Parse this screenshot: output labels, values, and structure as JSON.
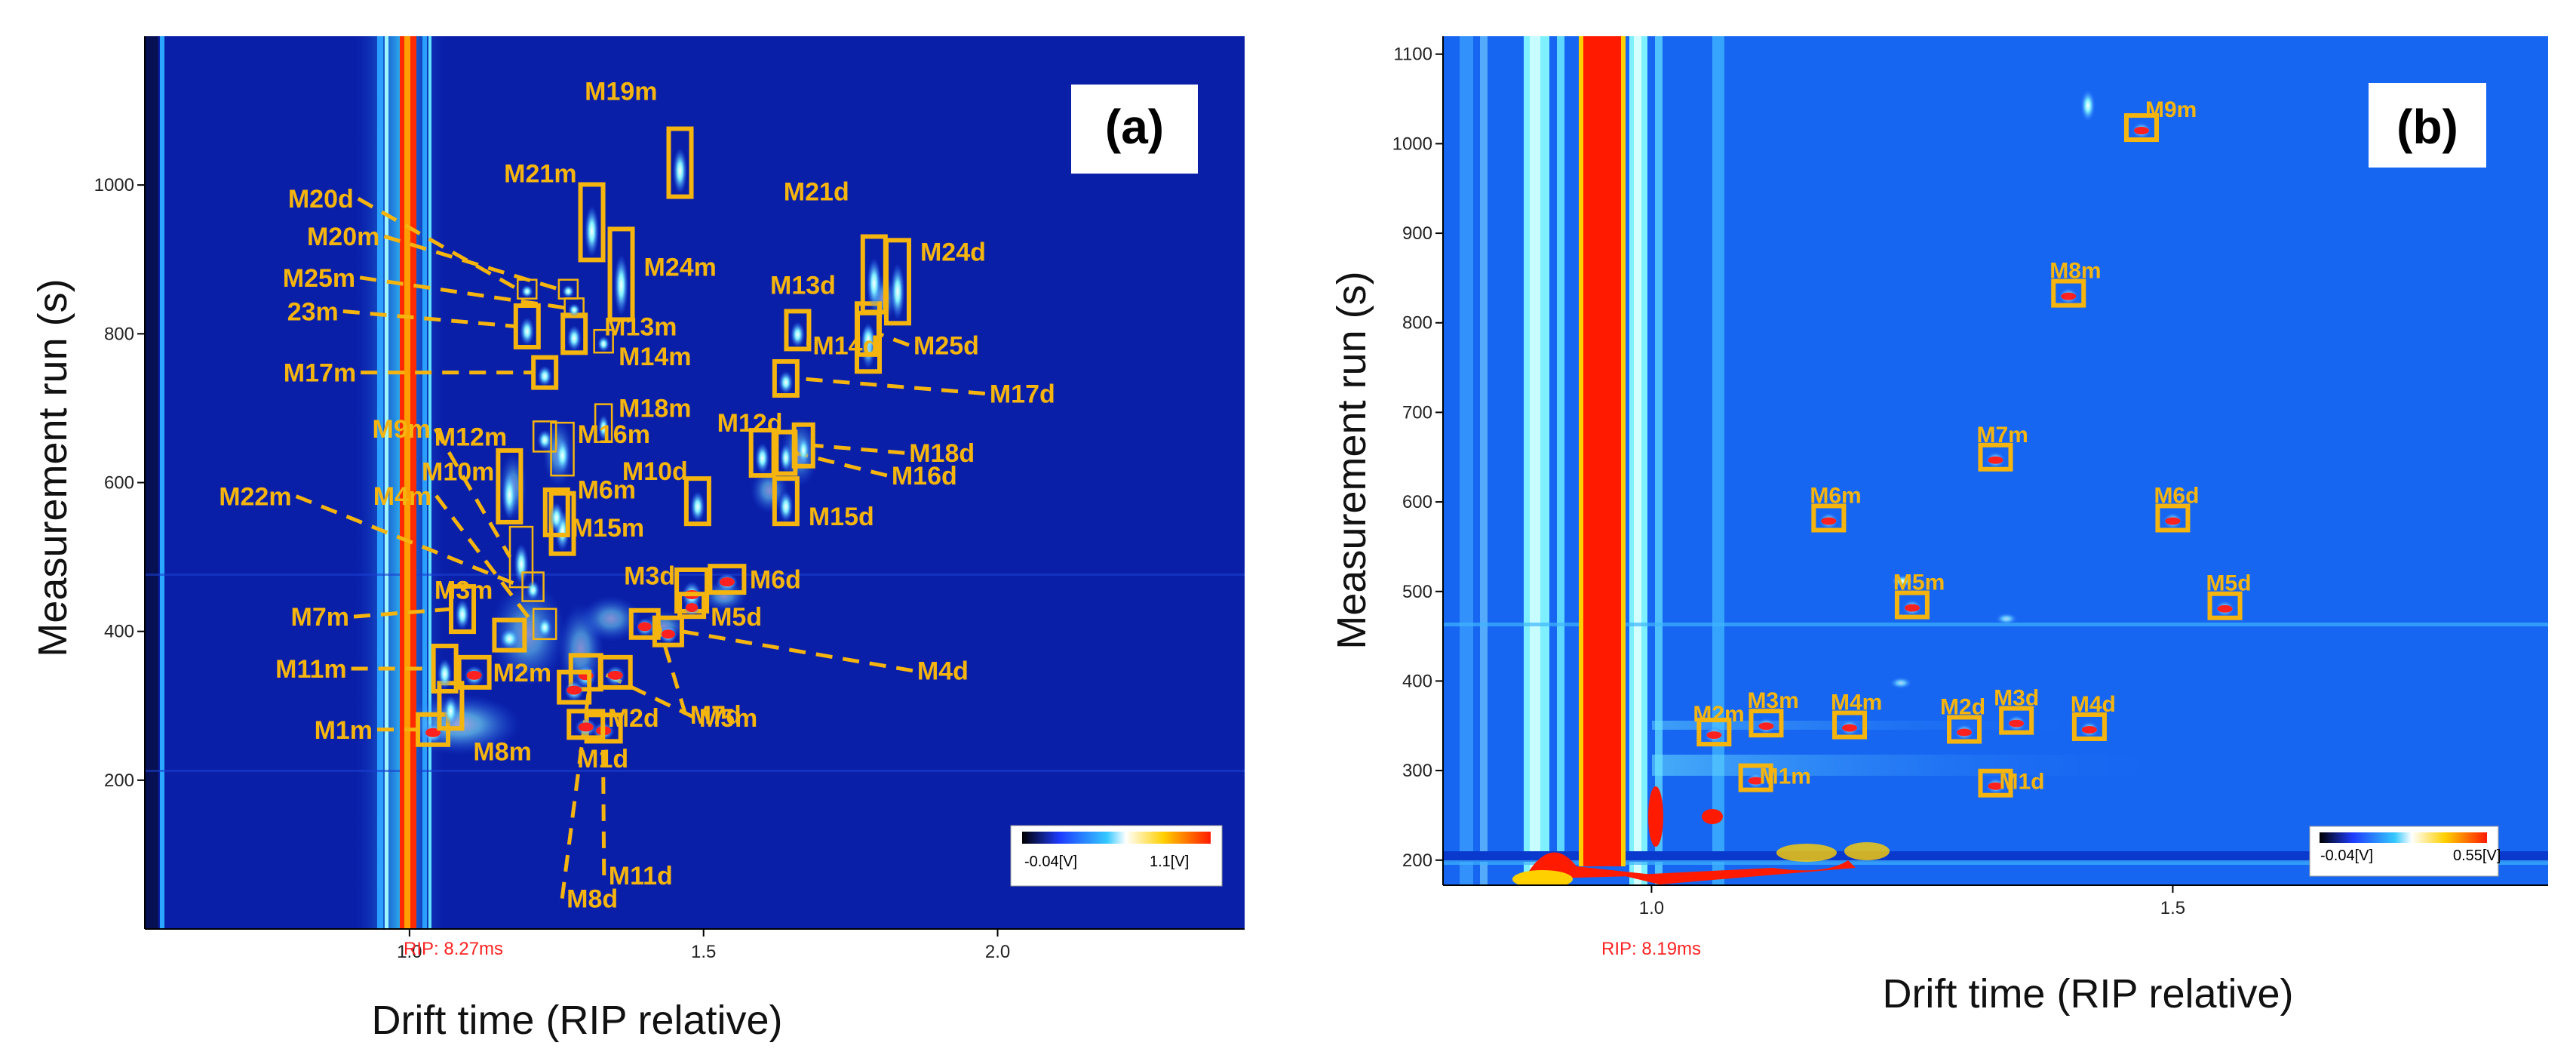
{
  "chart_data": [
    {
      "panel": "a",
      "type": "heatmap",
      "panel_label": "(a)",
      "xlabel": "Drift time (RIP relative)",
      "ylabel": "Measurement run (s)",
      "xlim": [
        0.55,
        2.42
      ],
      "ylim": [
        0,
        1200
      ],
      "xticks": [
        1.0,
        1.5,
        2.0
      ],
      "xtick_labels": [
        "1.0",
        "1.5",
        "2.0"
      ],
      "yticks": [
        200,
        400,
        600,
        800,
        1000
      ],
      "ytick_labels": [
        "200",
        "400",
        "600",
        "800",
        "1000"
      ],
      "rip_label": "RIP: 8.27ms",
      "colorbar": {
        "min_label": "-0.04[V]",
        "max_label": "1.1[V]"
      },
      "markers": [
        {
          "name": "M1m",
          "x": 1.04,
          "y": 268,
          "label": "M1m"
        },
        {
          "name": "M2m",
          "x": 1.11,
          "y": 345,
          "label": "M2m"
        },
        {
          "name": "M3m",
          "x": 1.17,
          "y": 395,
          "label": "M3m"
        },
        {
          "name": "M4m",
          "x": 1.23,
          "y": 410,
          "label": "M4m"
        },
        {
          "name": "M5m",
          "x": 1.3,
          "y": 345,
          "label": "M5m"
        },
        {
          "name": "M6m",
          "x": 1.26,
          "y": 545,
          "label": "M6m"
        },
        {
          "name": "M7m",
          "x": 1.09,
          "y": 430,
          "label": "M7m"
        },
        {
          "name": "M8m",
          "x": 1.07,
          "y": 300,
          "label": "M8m"
        },
        {
          "name": "M9m",
          "x": 1.19,
          "y": 500,
          "label": "M9m"
        },
        {
          "name": "M10m",
          "x": 1.17,
          "y": 595,
          "label": "M10m"
        },
        {
          "name": "M11m",
          "x": 1.06,
          "y": 350,
          "label": "M11m"
        },
        {
          "name": "M12m",
          "x": 1.23,
          "y": 662,
          "label": "M12m"
        },
        {
          "name": "M13m",
          "x": 1.28,
          "y": 800,
          "label": "M13m"
        },
        {
          "name": "M14m",
          "x": 1.33,
          "y": 790,
          "label": "M14m"
        },
        {
          "name": "M15m",
          "x": 1.25,
          "y": 560,
          "label": "M15m"
        },
        {
          "name": "M16m",
          "x": 1.26,
          "y": 645,
          "label": "M16m"
        },
        {
          "name": "M17m",
          "x": 1.23,
          "y": 748,
          "label": "M17m"
        },
        {
          "name": "M18m",
          "x": 1.33,
          "y": 680,
          "label": "M18m"
        },
        {
          "name": "M19m",
          "x": 1.46,
          "y": 1030,
          "label": "M19m"
        },
        {
          "name": "M20d",
          "x": 1.2,
          "y": 860,
          "label": "M20d"
        },
        {
          "name": "M20m",
          "x": 1.27,
          "y": 860,
          "label": "M20m"
        },
        {
          "name": "M21m",
          "x": 1.31,
          "y": 950,
          "label": "M21m"
        },
        {
          "name": "M22m",
          "x": 1.21,
          "y": 460,
          "label": "M22m"
        },
        {
          "name": "23m",
          "x": 1.2,
          "y": 810,
          "label": "23m"
        },
        {
          "name": "M24m",
          "x": 1.36,
          "y": 880,
          "label": "M24m"
        },
        {
          "name": "M25m",
          "x": 1.28,
          "y": 835,
          "label": "M25m"
        },
        {
          "name": "M1d",
          "x": 1.33,
          "y": 270,
          "label": "M1d"
        },
        {
          "name": "M2d",
          "x": 1.35,
          "y": 345,
          "label": "M2d"
        },
        {
          "name": "M3d",
          "x": 1.48,
          "y": 455,
          "label": "M3d"
        },
        {
          "name": "M4d",
          "x": 1.44,
          "y": 400,
          "label": "M4d"
        },
        {
          "name": "M5d",
          "x": 1.48,
          "y": 435,
          "label": "M5d"
        },
        {
          "name": "M6d",
          "x": 1.54,
          "y": 470,
          "label": "M6d"
        },
        {
          "name": "M7d",
          "x": 1.4,
          "y": 410,
          "label": "M7d"
        },
        {
          "name": "M8d",
          "x": 1.28,
          "y": 325,
          "label": "M8d"
        },
        {
          "name": "M10d",
          "x": 1.49,
          "y": 575,
          "label": "M10d"
        },
        {
          "name": "M11d",
          "x": 1.3,
          "y": 275,
          "label": "M11d"
        },
        {
          "name": "M12d",
          "x": 1.6,
          "y": 640,
          "label": "M12d"
        },
        {
          "name": "M13d",
          "x": 1.78,
          "y": 795,
          "label": "M13d"
        },
        {
          "name": "M14d",
          "x": 1.66,
          "y": 805,
          "label": "M14d"
        },
        {
          "name": "M15d",
          "x": 1.64,
          "y": 575,
          "label": "M15d"
        },
        {
          "name": "M16d",
          "x": 1.64,
          "y": 640,
          "label": "M16d"
        },
        {
          "name": "M17d",
          "x": 1.64,
          "y": 740,
          "label": "M17d"
        },
        {
          "name": "M18d",
          "x": 1.67,
          "y": 650,
          "label": "M18d"
        },
        {
          "name": "M21d",
          "x": 1.79,
          "y": 880,
          "label": "M21d"
        },
        {
          "name": "M24d",
          "x": 1.83,
          "y": 870,
          "label": "M24d"
        },
        {
          "name": "M25d",
          "x": 1.78,
          "y": 800,
          "label": "M25d"
        }
      ]
    },
    {
      "panel": "b",
      "type": "heatmap",
      "panel_label": "(b)",
      "xlabel": "Drift time (RIP relative)",
      "ylabel": "Measurement run (s)",
      "xlim": [
        0.8,
        1.86
      ],
      "ylim": [
        172,
        1120
      ],
      "xticks": [
        1.0,
        1.5
      ],
      "xtick_labels": [
        "1.0",
        "1.5"
      ],
      "yticks": [
        200,
        300,
        400,
        500,
        600,
        700,
        800,
        900,
        1000,
        1100
      ],
      "ytick_labels": [
        "200",
        "300",
        "400",
        "500",
        "600",
        "700",
        "800",
        "900",
        "1000",
        "1100"
      ],
      "rip_label": "RIP: 8.19ms",
      "colorbar": {
        "min_label": "-0.04[V]",
        "max_label": "0.55[V]"
      },
      "markers": [
        {
          "name": "M1m",
          "x": 1.1,
          "y": 292,
          "label": "M1m"
        },
        {
          "name": "M2m",
          "x": 1.06,
          "y": 343,
          "label": "M2m"
        },
        {
          "name": "M3m",
          "x": 1.11,
          "y": 353,
          "label": "M3m"
        },
        {
          "name": "M4m",
          "x": 1.19,
          "y": 351,
          "label": "M4m"
        },
        {
          "name": "M5m",
          "x": 1.25,
          "y": 485,
          "label": "M5m"
        },
        {
          "name": "M6m",
          "x": 1.17,
          "y": 582,
          "label": "M6m"
        },
        {
          "name": "M7m",
          "x": 1.33,
          "y": 650,
          "label": "M7m"
        },
        {
          "name": "M8m",
          "x": 1.4,
          "y": 833,
          "label": "M8m"
        },
        {
          "name": "M9m",
          "x": 1.47,
          "y": 1018,
          "label": "M9m"
        },
        {
          "name": "M1d",
          "x": 1.33,
          "y": 286,
          "label": "M1d"
        },
        {
          "name": "M2d",
          "x": 1.3,
          "y": 346,
          "label": "M2d"
        },
        {
          "name": "M3d",
          "x": 1.35,
          "y": 356,
          "label": "M3d"
        },
        {
          "name": "M4d",
          "x": 1.42,
          "y": 349,
          "label": "M4d"
        },
        {
          "name": "M5d",
          "x": 1.55,
          "y": 484,
          "label": "M5d"
        },
        {
          "name": "M6d",
          "x": 1.5,
          "y": 582,
          "label": "M6d"
        }
      ]
    }
  ]
}
